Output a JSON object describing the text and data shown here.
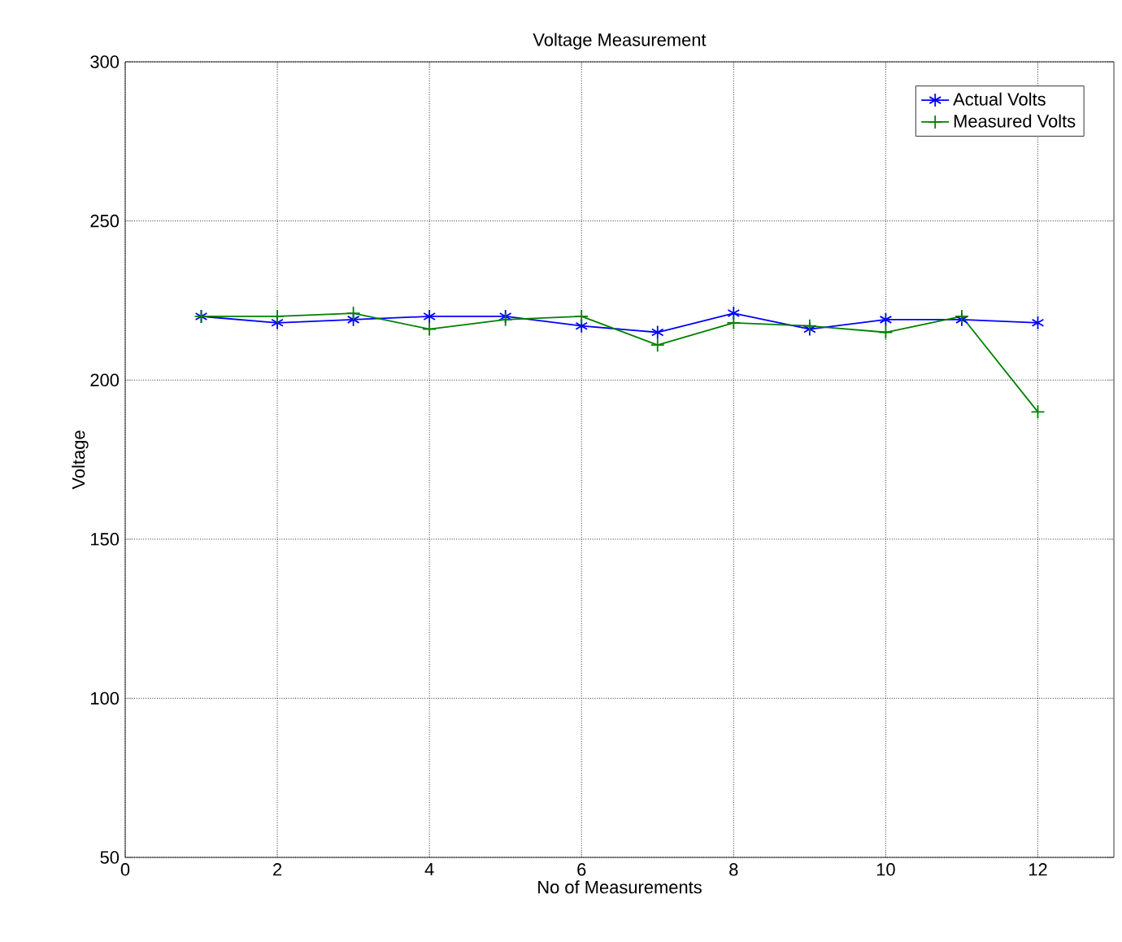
{
  "chart_data": {
    "type": "line",
    "title": "Voltage Measurement",
    "xlabel": "No of Measurements",
    "ylabel": "Voltage",
    "x": [
      1,
      2,
      3,
      4,
      5,
      6,
      7,
      8,
      9,
      10,
      11,
      12
    ],
    "series": [
      {
        "name": "Actual Volts",
        "color": "#0000ff",
        "marker": "cross",
        "values": [
          220,
          218,
          219,
          220,
          220,
          217,
          215,
          221,
          216,
          219,
          219,
          218
        ]
      },
      {
        "name": "Measured Volts",
        "color": "#008000",
        "marker": "plus",
        "values": [
          220,
          220,
          221,
          216,
          219,
          220,
          211,
          218,
          217,
          215,
          220,
          190
        ]
      }
    ],
    "xlim": [
      0,
      13
    ],
    "xticks": [
      0,
      2,
      4,
      6,
      8,
      10,
      12
    ],
    "ylim": [
      50,
      300
    ],
    "yticks": [
      50,
      100,
      150,
      200,
      250,
      300
    ],
    "grid": true,
    "legend": "top right",
    "line_style": "solid"
  }
}
